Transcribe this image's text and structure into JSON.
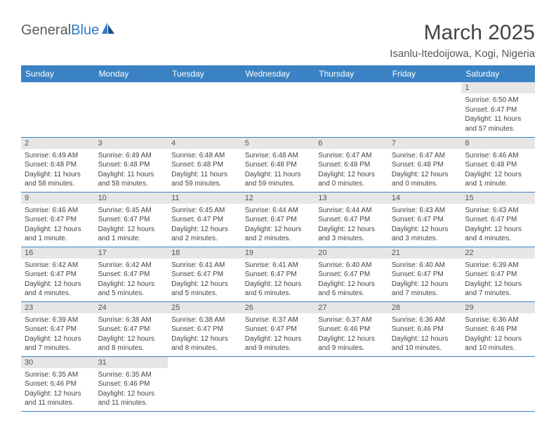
{
  "logo": {
    "text1": "General",
    "text2": "Blue"
  },
  "title": "March 2025",
  "location": "Isanlu-Itedoijowa, Kogi, Nigeria",
  "colors": {
    "header_bg": "#3a82c4",
    "header_text": "#ffffff",
    "daynum_bg": "#e6e6e6",
    "row_border": "#3a82c4",
    "body_bg": "#ffffff",
    "text": "#444444",
    "logo_gray": "#5a5a5a",
    "logo_blue": "#2f7bc4"
  },
  "fonts": {
    "title_size_pt": 22,
    "location_size_pt": 11,
    "dayheader_size_pt": 9,
    "body_size_pt": 7.5
  },
  "day_headers": [
    "Sunday",
    "Monday",
    "Tuesday",
    "Wednesday",
    "Thursday",
    "Friday",
    "Saturday"
  ],
  "weeks": [
    [
      {
        "empty": true
      },
      {
        "empty": true
      },
      {
        "empty": true
      },
      {
        "empty": true
      },
      {
        "empty": true
      },
      {
        "empty": true
      },
      {
        "n": "1",
        "sunrise": "Sunrise: 6:50 AM",
        "sunset": "Sunset: 6:47 PM",
        "daylight": "Daylight: 11 hours and 57 minutes."
      }
    ],
    [
      {
        "n": "2",
        "sunrise": "Sunrise: 6:49 AM",
        "sunset": "Sunset: 6:48 PM",
        "daylight": "Daylight: 11 hours and 58 minutes."
      },
      {
        "n": "3",
        "sunrise": "Sunrise: 6:49 AM",
        "sunset": "Sunset: 6:48 PM",
        "daylight": "Daylight: 11 hours and 58 minutes."
      },
      {
        "n": "4",
        "sunrise": "Sunrise: 6:48 AM",
        "sunset": "Sunset: 6:48 PM",
        "daylight": "Daylight: 11 hours and 59 minutes."
      },
      {
        "n": "5",
        "sunrise": "Sunrise: 6:48 AM",
        "sunset": "Sunset: 6:48 PM",
        "daylight": "Daylight: 11 hours and 59 minutes."
      },
      {
        "n": "6",
        "sunrise": "Sunrise: 6:47 AM",
        "sunset": "Sunset: 6:48 PM",
        "daylight": "Daylight: 12 hours and 0 minutes."
      },
      {
        "n": "7",
        "sunrise": "Sunrise: 6:47 AM",
        "sunset": "Sunset: 6:48 PM",
        "daylight": "Daylight: 12 hours and 0 minutes."
      },
      {
        "n": "8",
        "sunrise": "Sunrise: 6:46 AM",
        "sunset": "Sunset: 6:48 PM",
        "daylight": "Daylight: 12 hours and 1 minute."
      }
    ],
    [
      {
        "n": "9",
        "sunrise": "Sunrise: 6:46 AM",
        "sunset": "Sunset: 6:47 PM",
        "daylight": "Daylight: 12 hours and 1 minute."
      },
      {
        "n": "10",
        "sunrise": "Sunrise: 6:45 AM",
        "sunset": "Sunset: 6:47 PM",
        "daylight": "Daylight: 12 hours and 1 minute."
      },
      {
        "n": "11",
        "sunrise": "Sunrise: 6:45 AM",
        "sunset": "Sunset: 6:47 PM",
        "daylight": "Daylight: 12 hours and 2 minutes."
      },
      {
        "n": "12",
        "sunrise": "Sunrise: 6:44 AM",
        "sunset": "Sunset: 6:47 PM",
        "daylight": "Daylight: 12 hours and 2 minutes."
      },
      {
        "n": "13",
        "sunrise": "Sunrise: 6:44 AM",
        "sunset": "Sunset: 6:47 PM",
        "daylight": "Daylight: 12 hours and 3 minutes."
      },
      {
        "n": "14",
        "sunrise": "Sunrise: 6:43 AM",
        "sunset": "Sunset: 6:47 PM",
        "daylight": "Daylight: 12 hours and 3 minutes."
      },
      {
        "n": "15",
        "sunrise": "Sunrise: 6:43 AM",
        "sunset": "Sunset: 6:47 PM",
        "daylight": "Daylight: 12 hours and 4 minutes."
      }
    ],
    [
      {
        "n": "16",
        "sunrise": "Sunrise: 6:42 AM",
        "sunset": "Sunset: 6:47 PM",
        "daylight": "Daylight: 12 hours and 4 minutes."
      },
      {
        "n": "17",
        "sunrise": "Sunrise: 6:42 AM",
        "sunset": "Sunset: 6:47 PM",
        "daylight": "Daylight: 12 hours and 5 minutes."
      },
      {
        "n": "18",
        "sunrise": "Sunrise: 6:41 AM",
        "sunset": "Sunset: 6:47 PM",
        "daylight": "Daylight: 12 hours and 5 minutes."
      },
      {
        "n": "19",
        "sunrise": "Sunrise: 6:41 AM",
        "sunset": "Sunset: 6:47 PM",
        "daylight": "Daylight: 12 hours and 6 minutes."
      },
      {
        "n": "20",
        "sunrise": "Sunrise: 6:40 AM",
        "sunset": "Sunset: 6:47 PM",
        "daylight": "Daylight: 12 hours and 6 minutes."
      },
      {
        "n": "21",
        "sunrise": "Sunrise: 6:40 AM",
        "sunset": "Sunset: 6:47 PM",
        "daylight": "Daylight: 12 hours and 7 minutes."
      },
      {
        "n": "22",
        "sunrise": "Sunrise: 6:39 AM",
        "sunset": "Sunset: 6:47 PM",
        "daylight": "Daylight: 12 hours and 7 minutes."
      }
    ],
    [
      {
        "n": "23",
        "sunrise": "Sunrise: 6:39 AM",
        "sunset": "Sunset: 6:47 PM",
        "daylight": "Daylight: 12 hours and 7 minutes."
      },
      {
        "n": "24",
        "sunrise": "Sunrise: 6:38 AM",
        "sunset": "Sunset: 6:47 PM",
        "daylight": "Daylight: 12 hours and 8 minutes."
      },
      {
        "n": "25",
        "sunrise": "Sunrise: 6:38 AM",
        "sunset": "Sunset: 6:47 PM",
        "daylight": "Daylight: 12 hours and 8 minutes."
      },
      {
        "n": "26",
        "sunrise": "Sunrise: 6:37 AM",
        "sunset": "Sunset: 6:47 PM",
        "daylight": "Daylight: 12 hours and 9 minutes."
      },
      {
        "n": "27",
        "sunrise": "Sunrise: 6:37 AM",
        "sunset": "Sunset: 6:46 PM",
        "daylight": "Daylight: 12 hours and 9 minutes."
      },
      {
        "n": "28",
        "sunrise": "Sunrise: 6:36 AM",
        "sunset": "Sunset: 6:46 PM",
        "daylight": "Daylight: 12 hours and 10 minutes."
      },
      {
        "n": "29",
        "sunrise": "Sunrise: 6:36 AM",
        "sunset": "Sunset: 6:46 PM",
        "daylight": "Daylight: 12 hours and 10 minutes."
      }
    ],
    [
      {
        "n": "30",
        "sunrise": "Sunrise: 6:35 AM",
        "sunset": "Sunset: 6:46 PM",
        "daylight": "Daylight: 12 hours and 11 minutes."
      },
      {
        "n": "31",
        "sunrise": "Sunrise: 6:35 AM",
        "sunset": "Sunset: 6:46 PM",
        "daylight": "Daylight: 12 hours and 11 minutes."
      },
      {
        "empty": true
      },
      {
        "empty": true
      },
      {
        "empty": true
      },
      {
        "empty": true
      },
      {
        "empty": true
      }
    ]
  ]
}
